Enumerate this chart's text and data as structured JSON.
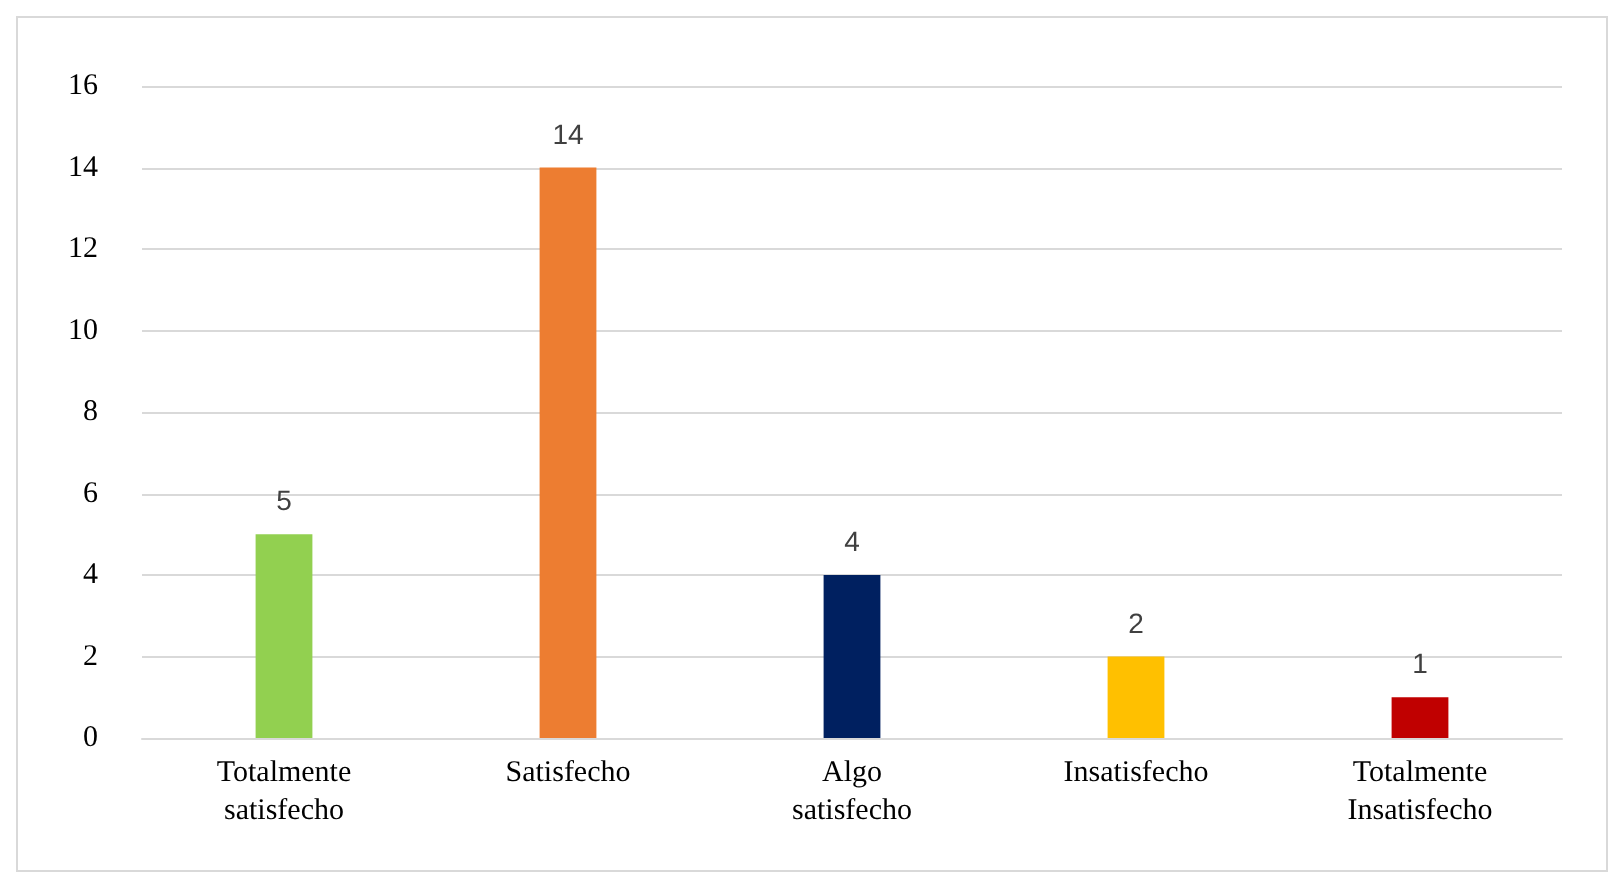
{
  "chart_data": {
    "type": "bar",
    "categories": [
      "Totalmente\nsatisfecho",
      "Satisfecho",
      "Algo\nsatisfecho",
      "Insatisfecho",
      "Totalmente\nInsatisfecho"
    ],
    "values": [
      5,
      14,
      4,
      2,
      1
    ],
    "colors": [
      "#92d050",
      "#ed7d31",
      "#002060",
      "#ffc000",
      "#c00000"
    ],
    "ylim": [
      0,
      16
    ],
    "yticks": [
      0,
      2,
      4,
      6,
      8,
      10,
      12,
      14,
      16
    ],
    "grid": "y",
    "data_labels": true
  }
}
